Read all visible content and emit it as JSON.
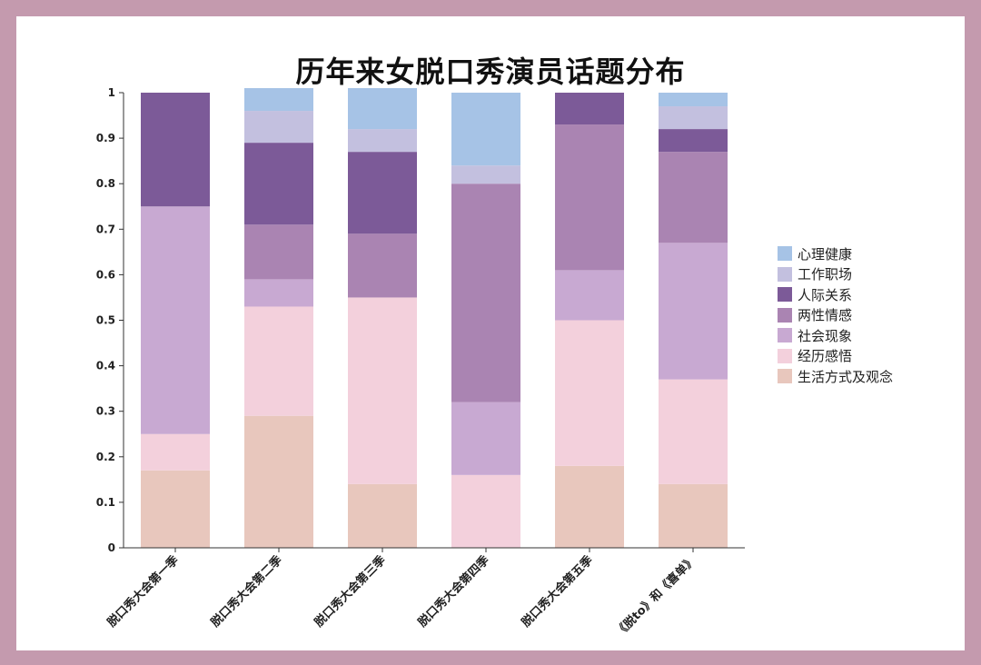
{
  "title": "历年来女脱口秀演员话题分布",
  "chart_data": {
    "type": "bar",
    "stacked": true,
    "title": "历年来女脱口秀演员话题分布",
    "xlabel": "",
    "ylabel": "",
    "ylim": [
      0,
      1
    ],
    "yticks": [
      "0",
      "0.1",
      "0.2",
      "0.3",
      "0.4",
      "0.5",
      "0.6",
      "0.7",
      "0.8",
      "0.9",
      "1"
    ],
    "grid": false,
    "legend_position": "right",
    "categories": [
      "脱口秀大会第一季",
      "脱口秀大会第二季",
      "脱口秀大会第三季",
      "脱口秀大会第四季",
      "脱口秀大会第五季",
      "《脱to》和《喜单》"
    ],
    "series": [
      {
        "name": "生活方式及观念",
        "color": "#e8c7bd",
        "values": [
          0.17,
          0.29,
          0.14,
          0.0,
          0.18,
          0.14
        ]
      },
      {
        "name": "经历感悟",
        "color": "#f3d0dc",
        "values": [
          0.08,
          0.24,
          0.41,
          0.16,
          0.32,
          0.23
        ]
      },
      {
        "name": "社会现象",
        "color": "#c8a9d2",
        "values": [
          0.5,
          0.06,
          0.0,
          0.16,
          0.11,
          0.3
        ]
      },
      {
        "name": "两性情感",
        "color": "#aa84b2",
        "values": [
          0.0,
          0.12,
          0.14,
          0.48,
          0.32,
          0.2
        ]
      },
      {
        "name": "人际关系",
        "color": "#7c5a98",
        "values": [
          0.25,
          0.18,
          0.18,
          0.0,
          0.07,
          0.05
        ]
      },
      {
        "name": "工作职场",
        "color": "#c3c0df",
        "values": [
          0.0,
          0.07,
          0.05,
          0.04,
          0.0,
          0.05
        ]
      },
      {
        "name": "心理健康",
        "color": "#a6c3e6",
        "values": [
          0.0,
          0.05,
          0.09,
          0.16,
          0.0,
          0.03
        ]
      }
    ]
  }
}
